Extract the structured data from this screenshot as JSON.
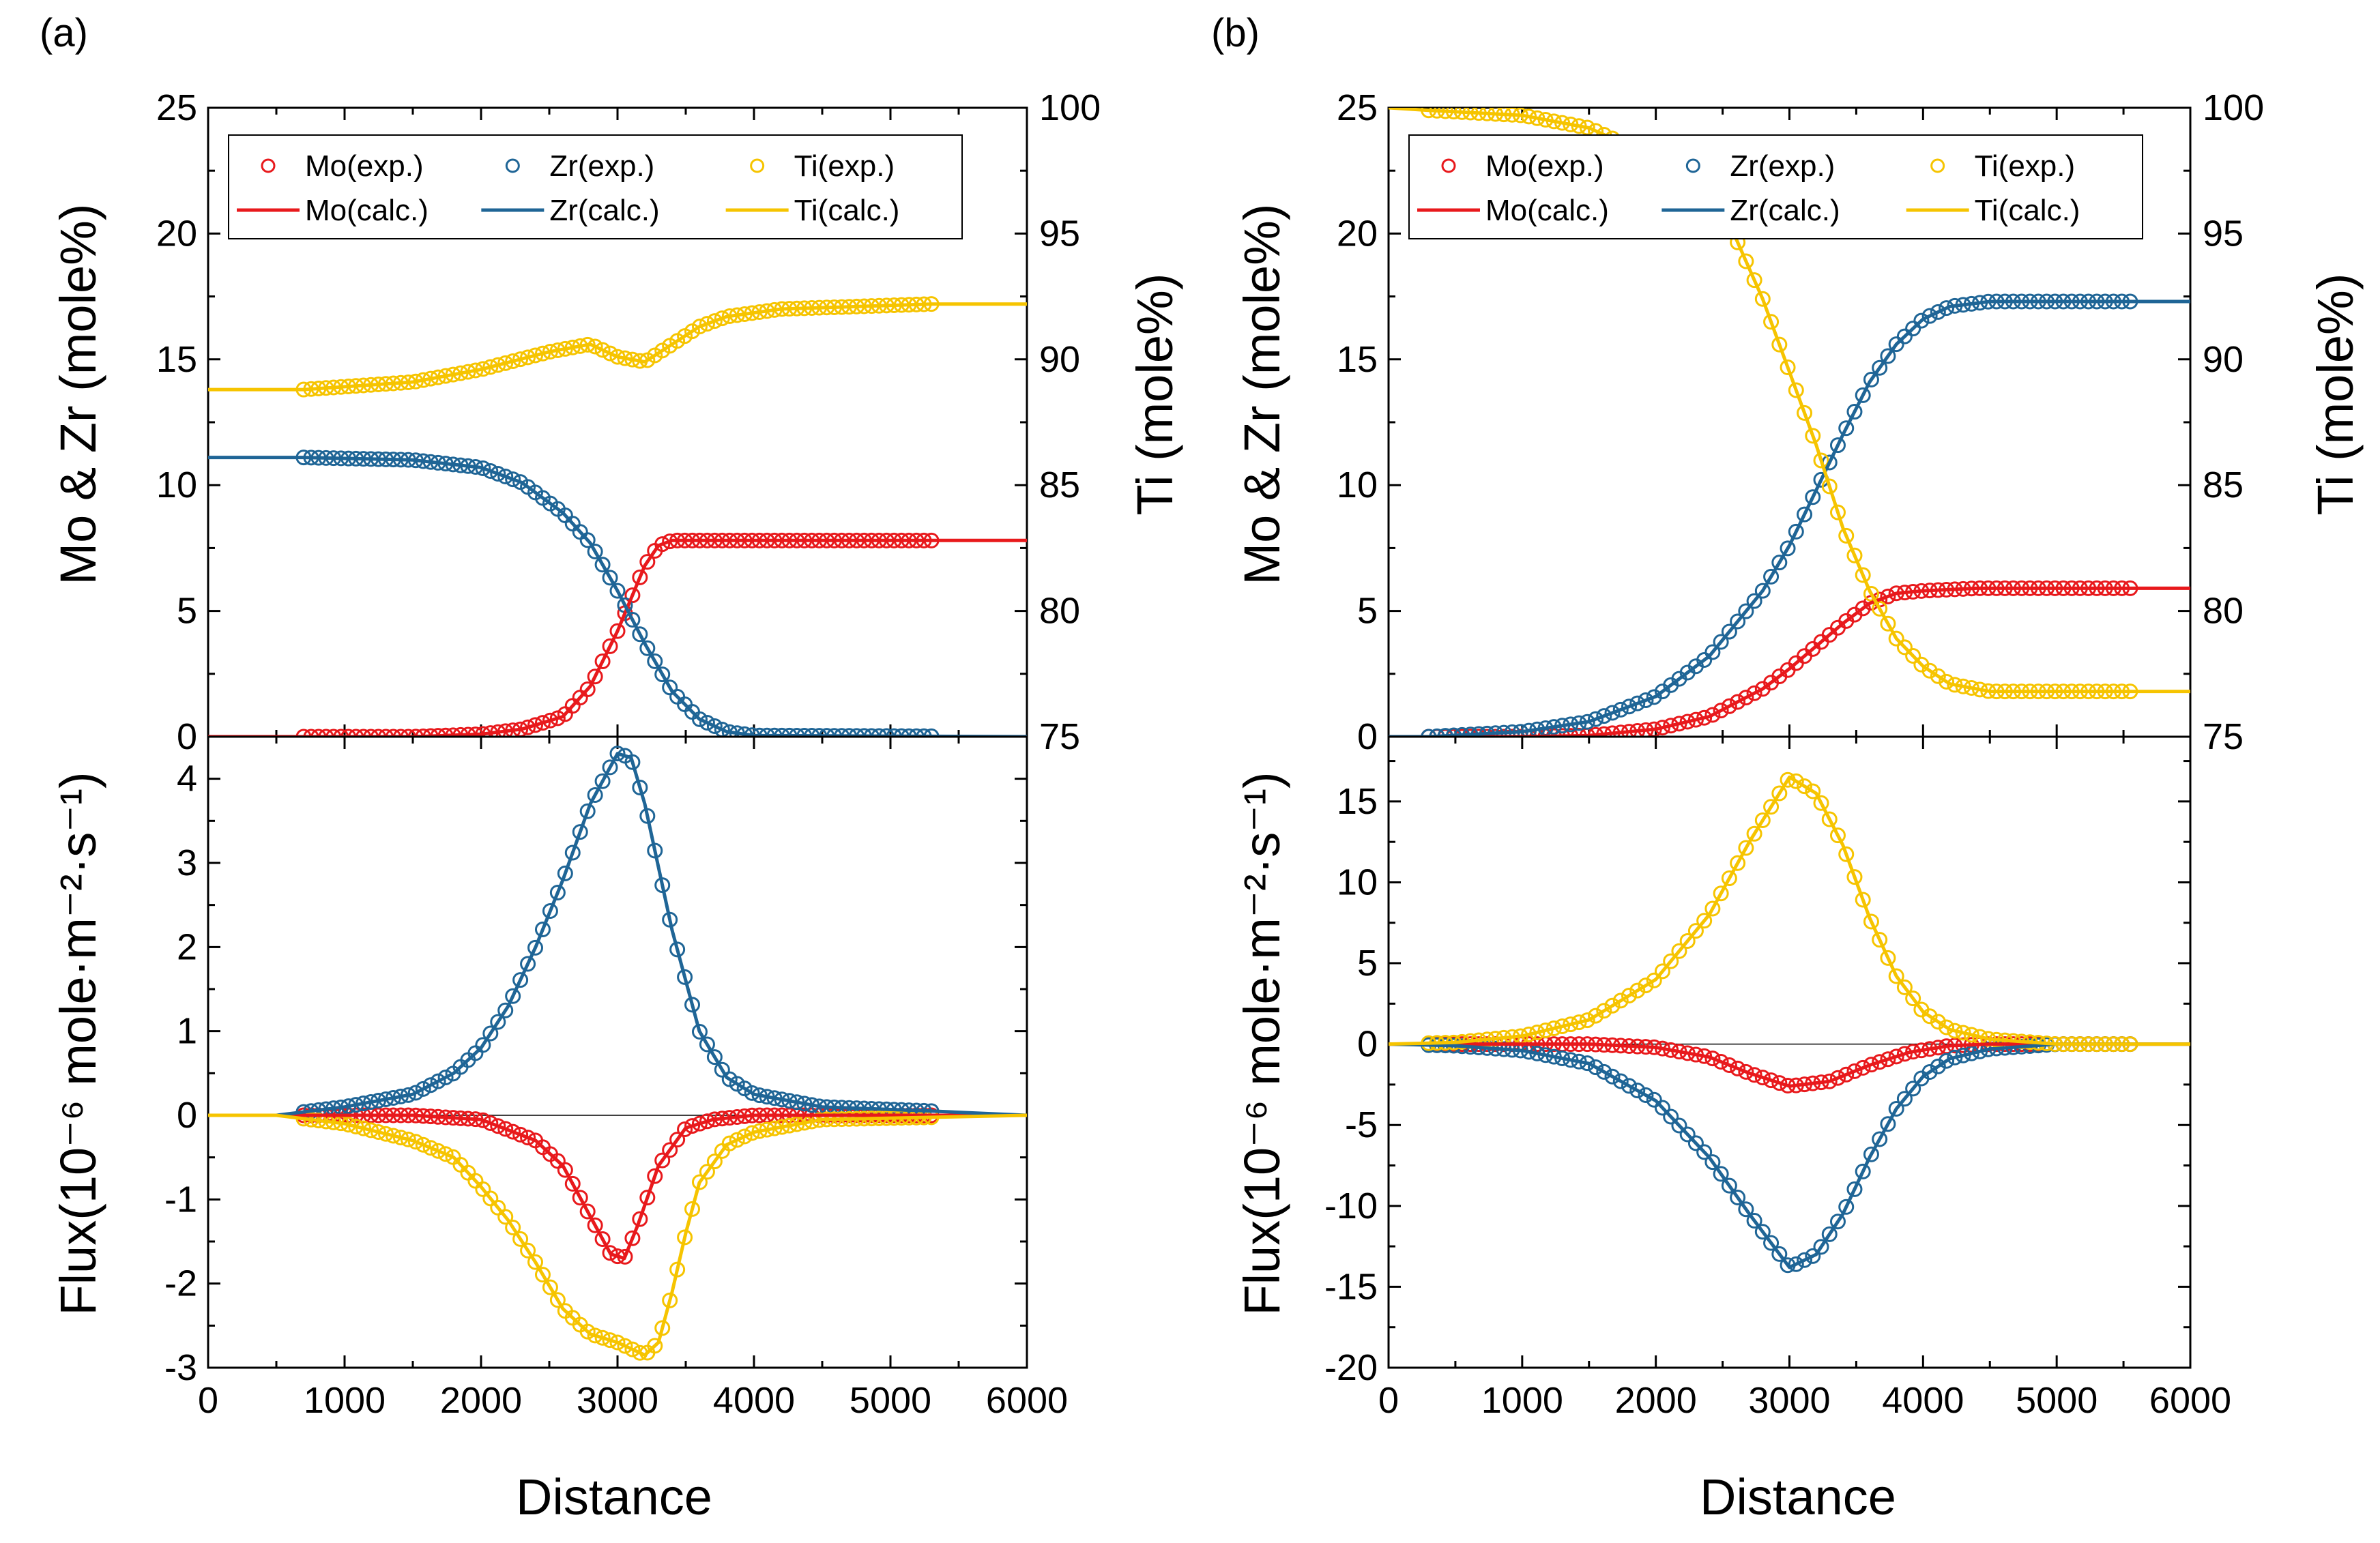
{
  "figure": {
    "panel_labels": [
      "(a)",
      "(b)"
    ],
    "x_axis_title": "Distance",
    "y_left_top_title": "Mo & Zr (mole%)",
    "y_right_top_title": "Ti (mole%)",
    "y_bottom_title": "Flux(10⁻⁶ mole·m⁻²·s⁻¹)",
    "legend": {
      "exp": [
        "Mo(exp.)",
        "Zr(exp.)",
        "Ti(exp.)"
      ],
      "calc": [
        "Mo(calc.)",
        "Zr(calc.)",
        "Ti(calc.)"
      ]
    },
    "colors": {
      "Mo": "#e8191c",
      "Zr": "#1f6596",
      "Ti": "#f6c400"
    }
  },
  "chart_data": [
    {
      "panel": "(a)",
      "type": "line",
      "subplot": "composition",
      "xlabel": "Distance",
      "ylabel": "Mo & Zr (mole%)",
      "y2label": "Ti (mole%)",
      "xlim": [
        0,
        6000
      ],
      "ylim": [
        0,
        25
      ],
      "y2lim": [
        75,
        100
      ],
      "xticks": [
        0,
        1000,
        2000,
        3000,
        4000,
        5000,
        6000
      ],
      "yticks": [
        0,
        5,
        10,
        15,
        20,
        25
      ],
      "y2ticks": [
        75,
        80,
        85,
        90,
        95,
        100
      ],
      "series": [
        {
          "name": "Mo(calc.)",
          "axis": "left",
          "style": "line",
          "x": [
            0,
            1500,
            2000,
            2300,
            2600,
            2800,
            3000,
            3200,
            3300,
            3400,
            4000,
            6000
          ],
          "y": [
            0,
            0,
            0.1,
            0.3,
            0.8,
            2.0,
            4.2,
            6.8,
            7.6,
            7.8,
            7.8,
            7.8
          ]
        },
        {
          "name": "Zr(calc.)",
          "axis": "left",
          "style": "line",
          "x": [
            0,
            700,
            1500,
            2000,
            2300,
            2600,
            2800,
            3000,
            3200,
            3400,
            3600,
            3800,
            4000,
            6000
          ],
          "y": [
            11.1,
            11.1,
            11.0,
            10.7,
            10.1,
            8.9,
            7.7,
            5.8,
            3.7,
            1.8,
            0.7,
            0.2,
            0.05,
            0
          ]
        },
        {
          "name": "Ti(calc.)",
          "axis": "right",
          "style": "line",
          "x": [
            0,
            700,
            1500,
            2000,
            2500,
            2800,
            3000,
            3200,
            3400,
            3600,
            3800,
            4200,
            5300,
            6000
          ],
          "y": [
            88.8,
            88.8,
            89.1,
            89.6,
            90.3,
            90.6,
            90.1,
            89.9,
            90.6,
            91.3,
            91.7,
            92.0,
            92.2,
            92.2
          ]
        },
        {
          "name": "Mo(exp.)",
          "axis": "left",
          "style": "markers",
          "range": [
            700,
            5300
          ],
          "source": "Mo(calc.)"
        },
        {
          "name": "Zr(exp.)",
          "axis": "left",
          "style": "markers",
          "range": [
            700,
            5300
          ],
          "source": "Zr(calc.)"
        },
        {
          "name": "Ti(exp.)",
          "axis": "right",
          "style": "markers",
          "range": [
            700,
            5300
          ],
          "source": "Ti(calc.)"
        }
      ]
    },
    {
      "panel": "(a)",
      "type": "line",
      "subplot": "flux",
      "xlabel": "Distance",
      "ylabel": "Flux(10⁻⁶ mole·m⁻²·s⁻¹)",
      "xlim": [
        0,
        6000
      ],
      "ylim": [
        -3,
        4.5
      ],
      "xticks": [
        0,
        1000,
        2000,
        3000,
        4000,
        5000,
        6000
      ],
      "yticks": [
        -3,
        -2,
        -1,
        0,
        1,
        2,
        3,
        4
      ],
      "series": [
        {
          "name": "Mo(calc.)",
          "style": "line",
          "x": [
            0,
            1500,
            2000,
            2400,
            2600,
            2800,
            2950,
            3050,
            3150,
            3300,
            3500,
            3700,
            4000,
            6000
          ],
          "y": [
            0,
            0,
            -0.05,
            -0.3,
            -0.6,
            -1.2,
            -1.65,
            -1.7,
            -1.3,
            -0.6,
            -0.15,
            -0.05,
            0,
            0
          ]
        },
        {
          "name": "Zr(calc.)",
          "style": "line",
          "x": [
            0,
            500,
            1000,
            1500,
            1800,
            2000,
            2200,
            2400,
            2600,
            2800,
            3000,
            3100,
            3200,
            3400,
            3600,
            3800,
            4000,
            4500,
            5300,
            6000
          ],
          "y": [
            0,
            0,
            0.1,
            0.25,
            0.5,
            0.8,
            1.3,
            2.0,
            2.8,
            3.7,
            4.3,
            4.25,
            3.7,
            2.2,
            1.0,
            0.45,
            0.25,
            0.1,
            0.05,
            0
          ]
        },
        {
          "name": "Ti(calc.)",
          "style": "line",
          "x": [
            0,
            500,
            1000,
            1500,
            1800,
            2000,
            2200,
            2400,
            2600,
            2800,
            3000,
            3200,
            3300,
            3400,
            3500,
            3600,
            3800,
            4000,
            4500,
            6000
          ],
          "y": [
            0,
            0,
            -0.1,
            -0.3,
            -0.5,
            -0.85,
            -1.25,
            -1.75,
            -2.3,
            -2.6,
            -2.7,
            -2.85,
            -2.7,
            -2.1,
            -1.4,
            -0.8,
            -0.35,
            -0.2,
            -0.05,
            0
          ]
        },
        {
          "name": "Mo(exp.)",
          "style": "markers",
          "range": [
            700,
            5300
          ],
          "source": "Mo(calc.)"
        },
        {
          "name": "Zr(exp.)",
          "style": "markers",
          "range": [
            700,
            5300
          ],
          "source": "Zr(calc.)"
        },
        {
          "name": "Ti(exp.)",
          "style": "markers",
          "range": [
            700,
            5300
          ],
          "source": "Ti(calc.)"
        }
      ]
    },
    {
      "panel": "(b)",
      "type": "line",
      "subplot": "composition",
      "xlabel": "Distance",
      "ylabel": "Mo & Zr (mole%)",
      "y2label": "Ti (mole%)",
      "xlim": [
        0,
        6000
      ],
      "ylim": [
        0,
        25
      ],
      "y2lim": [
        75,
        100
      ],
      "xticks": [
        0,
        1000,
        2000,
        3000,
        4000,
        5000,
        6000
      ],
      "yticks": [
        0,
        5,
        10,
        15,
        20,
        25
      ],
      "y2ticks": [
        75,
        80,
        85,
        90,
        95,
        100
      ],
      "series": [
        {
          "name": "Mo(calc.)",
          "axis": "left",
          "style": "line",
          "x": [
            0,
            1000,
            1500,
            2000,
            2400,
            2800,
            3000,
            3200,
            3400,
            3600,
            3800,
            4000,
            4400,
            6000
          ],
          "y": [
            0,
            0,
            0.05,
            0.3,
            0.8,
            1.9,
            2.7,
            3.6,
            4.5,
            5.3,
            5.7,
            5.8,
            5.9,
            5.9
          ]
        },
        {
          "name": "Zr(calc.)",
          "axis": "left",
          "style": "line",
          "x": [
            0,
            300,
            1000,
            1500,
            2000,
            2400,
            2800,
            3000,
            3200,
            3400,
            3600,
            3800,
            4000,
            4200,
            4500,
            5000,
            6000
          ],
          "y": [
            0,
            0,
            0.2,
            0.6,
            1.6,
            3.2,
            5.8,
            7.6,
            9.8,
            12.0,
            14.1,
            15.6,
            16.6,
            17.1,
            17.3,
            17.3,
            17.3
          ]
        },
        {
          "name": "Ti(calc.)",
          "axis": "right",
          "style": "line",
          "x": [
            0,
            300,
            1000,
            1500,
            2000,
            2400,
            2600,
            2800,
            3000,
            3200,
            3400,
            3600,
            3800,
            4000,
            4200,
            4500,
            5000,
            6000
          ],
          "y": [
            100,
            99.9,
            99.7,
            99.2,
            98.0,
            96.3,
            94.8,
            92.4,
            89.5,
            86.6,
            83.3,
            80.8,
            78.9,
            77.8,
            77.1,
            76.8,
            76.8,
            76.8
          ]
        },
        {
          "name": "Mo(exp.)",
          "axis": "left",
          "style": "markers",
          "range": [
            300,
            5550
          ],
          "source": "Mo(calc.)"
        },
        {
          "name": "Zr(exp.)",
          "axis": "left",
          "style": "markers",
          "range": [
            300,
            5550
          ],
          "source": "Zr(calc.)"
        },
        {
          "name": "Ti(exp.)",
          "axis": "right",
          "style": "markers",
          "range": [
            300,
            5550
          ],
          "source": "Ti(calc.)"
        }
      ]
    },
    {
      "panel": "(b)",
      "type": "line",
      "subplot": "flux",
      "xlabel": "Distance",
      "ylabel": "Flux(10⁻⁶ mole·m⁻²·s⁻¹)",
      "xlim": [
        0,
        6000
      ],
      "ylim": [
        -20,
        19
      ],
      "xticks": [
        0,
        1000,
        2000,
        3000,
        4000,
        5000,
        6000
      ],
      "yticks": [
        -20,
        -15,
        -10,
        -5,
        0,
        5,
        10,
        15
      ],
      "series": [
        {
          "name": "Mo(calc.)",
          "style": "line",
          "x": [
            0,
            1500,
            2000,
            2400,
            2700,
            3000,
            3300,
            3600,
            3900,
            4200,
            4500,
            6000
          ],
          "y": [
            0,
            0,
            -0.2,
            -0.8,
            -1.8,
            -2.6,
            -2.3,
            -1.3,
            -0.5,
            -0.1,
            0,
            0
          ]
        },
        {
          "name": "Zr(calc.)",
          "style": "line",
          "x": [
            0,
            500,
            1000,
            1500,
            2000,
            2400,
            2700,
            3000,
            3200,
            3400,
            3600,
            3800,
            4000,
            4200,
            4500,
            5000,
            6000
          ],
          "y": [
            0,
            -0.1,
            -0.4,
            -1.2,
            -3.5,
            -7.0,
            -10.5,
            -13.8,
            -13.0,
            -10.5,
            -7.0,
            -4.0,
            -2.0,
            -0.9,
            -0.3,
            0,
            0
          ]
        },
        {
          "name": "Ti(calc.)",
          "style": "line",
          "x": [
            0,
            500,
            1000,
            1500,
            2000,
            2400,
            2700,
            3000,
            3200,
            3400,
            3600,
            3800,
            4000,
            4200,
            4500,
            5000,
            6000
          ],
          "y": [
            0,
            0.1,
            0.5,
            1.5,
            4.0,
            8.0,
            12.5,
            16.5,
            15.5,
            12.3,
            7.8,
            4.2,
            2.0,
            0.9,
            0.3,
            0,
            0
          ]
        },
        {
          "name": "Mo(exp.)",
          "style": "markers",
          "range": [
            300,
            5550
          ],
          "source": "Mo(calc.)"
        },
        {
          "name": "Zr(exp.)",
          "style": "markers",
          "range": [
            300,
            5550
          ],
          "source": "Zr(calc.)"
        },
        {
          "name": "Ti(exp.)",
          "style": "markers",
          "range": [
            300,
            5550
          ],
          "source": "Ti(calc.)"
        }
      ]
    }
  ]
}
